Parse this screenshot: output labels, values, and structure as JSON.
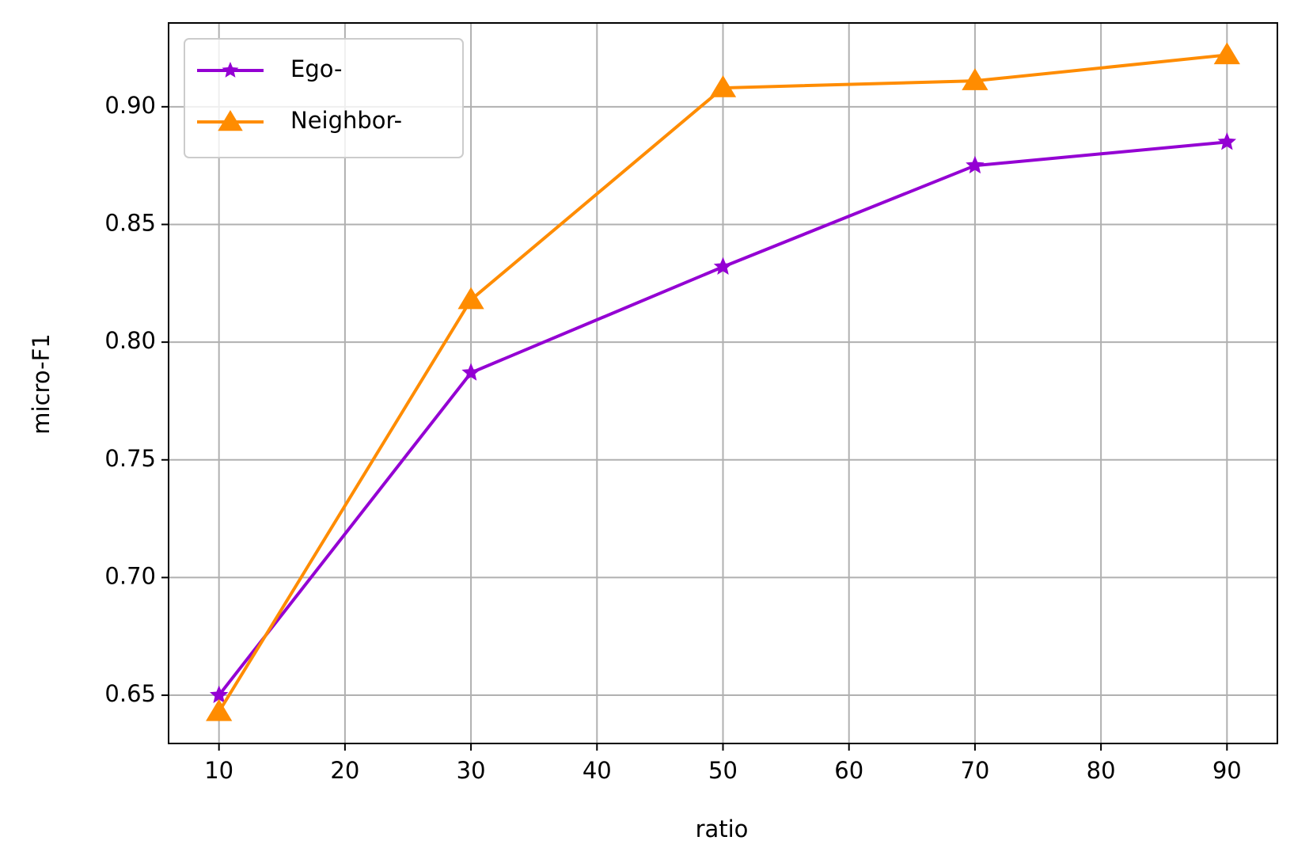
{
  "chart_data": {
    "type": "line",
    "x_label": "ratio",
    "y_label": "micro-F1",
    "x": [
      10,
      30,
      50,
      70,
      90
    ],
    "series": [
      {
        "name": "Ego-",
        "color": "#9400d3",
        "marker": "star",
        "values": [
          0.65,
          0.787,
          0.832,
          0.875,
          0.885
        ]
      },
      {
        "name": "Neighbor-",
        "color": "#ff8c00",
        "marker": "triangle",
        "values": [
          0.643,
          0.818,
          0.908,
          0.911,
          0.922
        ]
      }
    ],
    "xlim": [
      6,
      94
    ],
    "xticks": [
      10,
      20,
      30,
      40,
      50,
      60,
      70,
      80,
      90
    ],
    "ylim": [
      0.6295,
      0.9356
    ],
    "yticks": [
      0.65,
      {
        "value": 0.7,
        "label": "0.70"
      },
      0.75,
      {
        "value": 0.8,
        "label": "0.80"
      },
      0.85,
      {
        "value": 0.9,
        "label": "0.90"
      }
    ],
    "grid": true,
    "legend": "upper left"
  }
}
